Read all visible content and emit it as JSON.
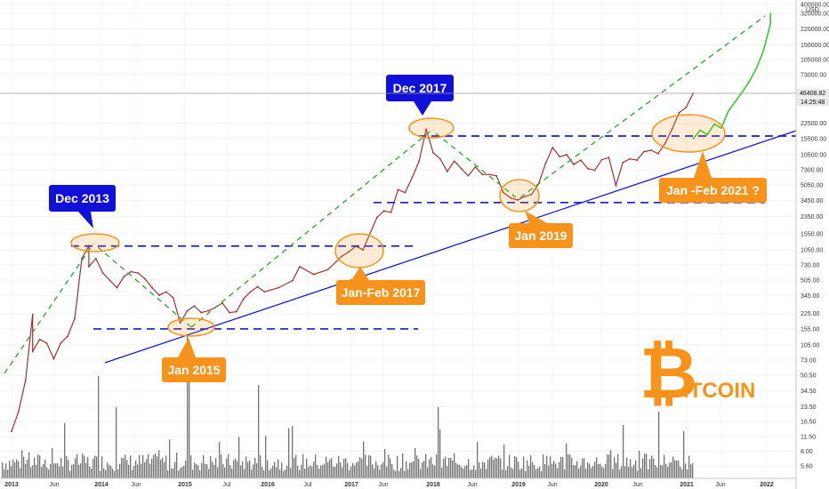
{
  "chart_data": {
    "type": "line",
    "title": "",
    "xlabel": "",
    "ylabel": "",
    "currency": "USD",
    "y_scale": "log",
    "ylim": [
      4,
      420000
    ],
    "y_ticks": [
      "400000.00",
      "320000.00",
      "220000.00",
      "150000.00",
      "105000.00",
      "73000.00",
      "46408.82",
      "22500.00",
      "15500.00",
      "10500.00",
      "7300.00",
      "5050.00",
      "3450.00",
      "2350.00",
      "1550.00",
      "1050.00",
      "730.00",
      "505.00",
      "345.00",
      "225.00",
      "155.00",
      "105.00",
      "73.00",
      "50.50",
      "34.50",
      "23.50",
      "16.50",
      "11.50",
      "8.00",
      "5.60"
    ],
    "x_ticks": [
      "2013",
      "Jun",
      "2014",
      "Jun",
      "2015",
      "Jul",
      "2016",
      "Jul",
      "2017",
      "Jun",
      "2018",
      "Jun",
      "2019",
      "Jun",
      "2020",
      "Jun",
      "2021",
      "Jun",
      "2022"
    ],
    "current_price": "46408.82",
    "countdown": "14:25:48",
    "series": [
      {
        "values": [
          [
            "2013-01",
            13
          ],
          [
            "2013-02",
            21
          ],
          [
            "2013-03",
            45
          ],
          [
            "2013-04",
            220
          ],
          [
            "2013-04",
            90
          ],
          [
            "2013-05",
            120
          ],
          [
            "2013-06",
            110
          ],
          [
            "2013-07",
            75
          ],
          [
            "2013-08",
            110
          ],
          [
            "2013-09",
            130
          ],
          [
            "2013-10",
            200
          ],
          [
            "2013-11",
            850
          ],
          [
            "2013-12",
            1150
          ],
          [
            "2013-12",
            700
          ],
          [
            "2014-01",
            850
          ],
          [
            "2014-02",
            600
          ],
          [
            "2014-03",
            500
          ],
          [
            "2014-04",
            420
          ],
          [
            "2014-05",
            550
          ],
          [
            "2014-06",
            620
          ],
          [
            "2014-07",
            600
          ],
          [
            "2014-08",
            520
          ],
          [
            "2014-09",
            420
          ],
          [
            "2014-10",
            350
          ],
          [
            "2014-11",
            380
          ],
          [
            "2014-12",
            330
          ],
          [
            "2015-01",
            180
          ],
          [
            "2015-02",
            240
          ],
          [
            "2015-03",
            270
          ],
          [
            "2015-04",
            230
          ],
          [
            "2015-05",
            240
          ],
          [
            "2015-06",
            260
          ],
          [
            "2015-07",
            290
          ],
          [
            "2015-08",
            230
          ],
          [
            "2015-09",
            235
          ],
          [
            "2015-10",
            320
          ],
          [
            "2015-11",
            380
          ],
          [
            "2015-12",
            430
          ],
          [
            "2016-01",
            380
          ],
          [
            "2016-03",
            420
          ],
          [
            "2016-05",
            500
          ],
          [
            "2016-06",
            700
          ],
          [
            "2016-08",
            580
          ],
          [
            "2016-10",
            650
          ],
          [
            "2016-12",
            900
          ],
          [
            "2017-01",
            1000
          ],
          [
            "2017-02",
            1150
          ],
          [
            "2017-03",
            1050
          ],
          [
            "2017-05",
            2300
          ],
          [
            "2017-06",
            2700
          ],
          [
            "2017-07",
            2600
          ],
          [
            "2017-08",
            4500
          ],
          [
            "2017-09",
            4200
          ],
          [
            "2017-10",
            6000
          ],
          [
            "2017-11",
            9000
          ],
          [
            "2017-12",
            19500
          ],
          [
            "2018-01",
            11000
          ],
          [
            "2018-02",
            9500
          ],
          [
            "2018-03",
            7000
          ],
          [
            "2018-04",
            9000
          ],
          [
            "2018-05",
            7500
          ],
          [
            "2018-06",
            6300
          ],
          [
            "2018-07",
            7800
          ],
          [
            "2018-08",
            6500
          ],
          [
            "2018-09",
            6500
          ],
          [
            "2018-10",
            6300
          ],
          [
            "2018-11",
            4200
          ],
          [
            "2018-12",
            3700
          ],
          [
            "2019-01",
            3500
          ],
          [
            "2019-02",
            3800
          ],
          [
            "2019-03",
            4000
          ],
          [
            "2019-04",
            5200
          ],
          [
            "2019-05",
            8500
          ],
          [
            "2019-06",
            12500
          ],
          [
            "2019-07",
            10000
          ],
          [
            "2019-08",
            10500
          ],
          [
            "2019-09",
            8300
          ],
          [
            "2019-10",
            9200
          ],
          [
            "2019-11",
            7500
          ],
          [
            "2019-12",
            7200
          ],
          [
            "2020-01",
            9300
          ],
          [
            "2020-02",
            9800
          ],
          [
            "2020-03",
            5000
          ],
          [
            "2020-04",
            8700
          ],
          [
            "2020-05",
            9500
          ],
          [
            "2020-06",
            9200
          ],
          [
            "2020-07",
            11300
          ],
          [
            "2020-08",
            11700
          ],
          [
            "2020-09",
            10800
          ],
          [
            "2020-10",
            13800
          ],
          [
            "2020-11",
            19500
          ],
          [
            "2020-12",
            29000
          ],
          [
            "2021-01",
            33000
          ],
          [
            "2021-02",
            46408.82
          ]
        ]
      },
      {
        "values": [
          [
            "2021-02",
            15500
          ],
          [
            "2021-03",
            19000
          ],
          [
            "2021-04",
            17000
          ],
          [
            "2021-05",
            22000
          ],
          [
            "2021-06",
            20000
          ],
          [
            "2021-07",
            30000
          ],
          [
            "2021-08",
            38000
          ],
          [
            "2021-09",
            48000
          ],
          [
            "2021-10",
            62000
          ],
          [
            "2021-11",
            85000
          ],
          [
            "2021-12",
            130000
          ],
          [
            "2022-01",
            250000
          ],
          [
            "2022-01",
            320000
          ]
        ]
      }
    ],
    "callouts": [
      {
        "label": "Dec 2013"
      },
      {
        "label": "Dec 2017"
      },
      {
        "label": "Jan 2015"
      },
      {
        "label": "Jan-Feb 2017"
      },
      {
        "label": "Jan 2019"
      },
      {
        "label": "Jan -Feb 2021 ?"
      }
    ],
    "horizontal_levels": [
      1150,
      155,
      16500,
      3300
    ],
    "logo": {
      "text": "ITCOIN",
      "symbol": "₿"
    },
    "colors": {
      "price": "#a03030",
      "projection": "#33cc33",
      "support_line": "#1a1acc",
      "levels": "#1a1acc",
      "trend_dashed": "#2ca02c",
      "callout_blue": "#1010d8",
      "callout_orange": "#f7931a",
      "volume": "#444444"
    }
  }
}
